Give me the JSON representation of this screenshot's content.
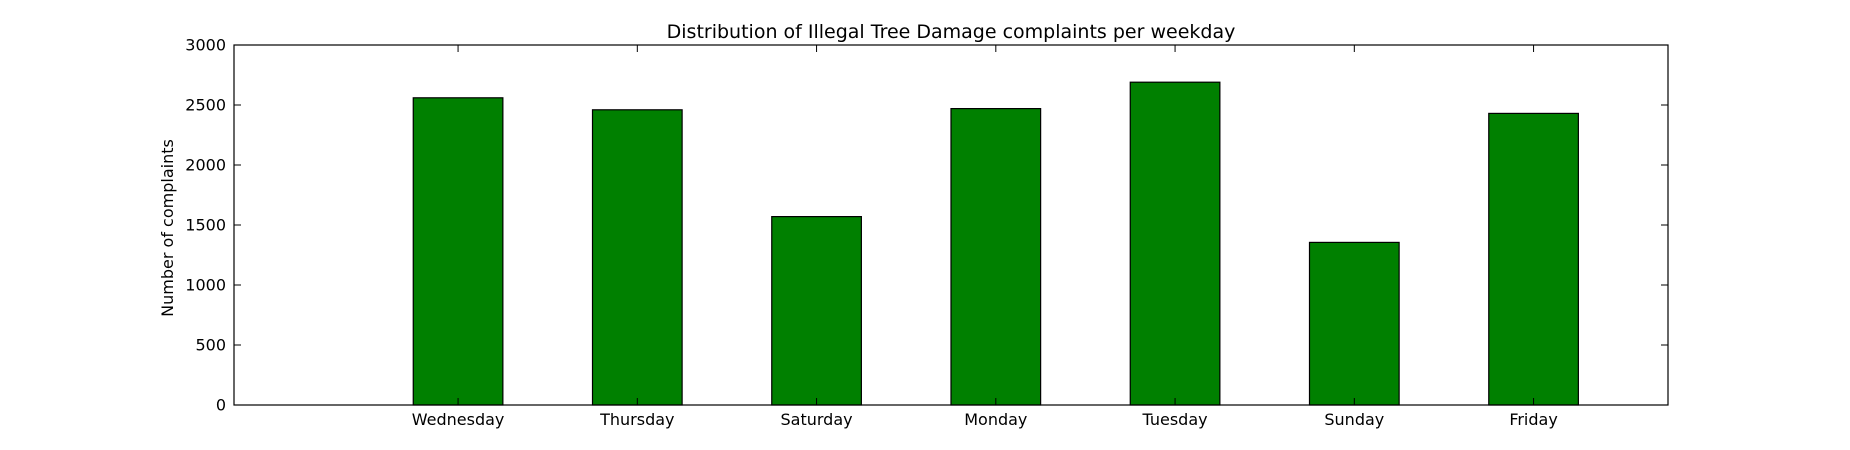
{
  "chart_data": {
    "type": "bar",
    "title": "Distribution of  Illegal Tree Damage complaints per weekday",
    "xlabel": "",
    "ylabel": "Number of complaints",
    "categories": [
      "Wednesday",
      "Thursday",
      "Saturday",
      "Monday",
      "Tuesday",
      "Sunday",
      "Friday"
    ],
    "values": [
      2560,
      2460,
      1570,
      2470,
      2690,
      1355,
      2430
    ],
    "ylim": [
      0,
      3000
    ],
    "yticks": [
      0,
      500,
      1000,
      1500,
      2000,
      2500,
      3000
    ],
    "ytick_labels": [
      "0",
      "500",
      "1000",
      "1500",
      "2000",
      "2500",
      "3000"
    ],
    "xlim": [
      -1.25,
      6.75
    ],
    "bar_width": 0.5,
    "grid": false,
    "legend": "none",
    "colors": {
      "bar": "#008000",
      "edge": "#000000",
      "axes": "#000000"
    }
  }
}
